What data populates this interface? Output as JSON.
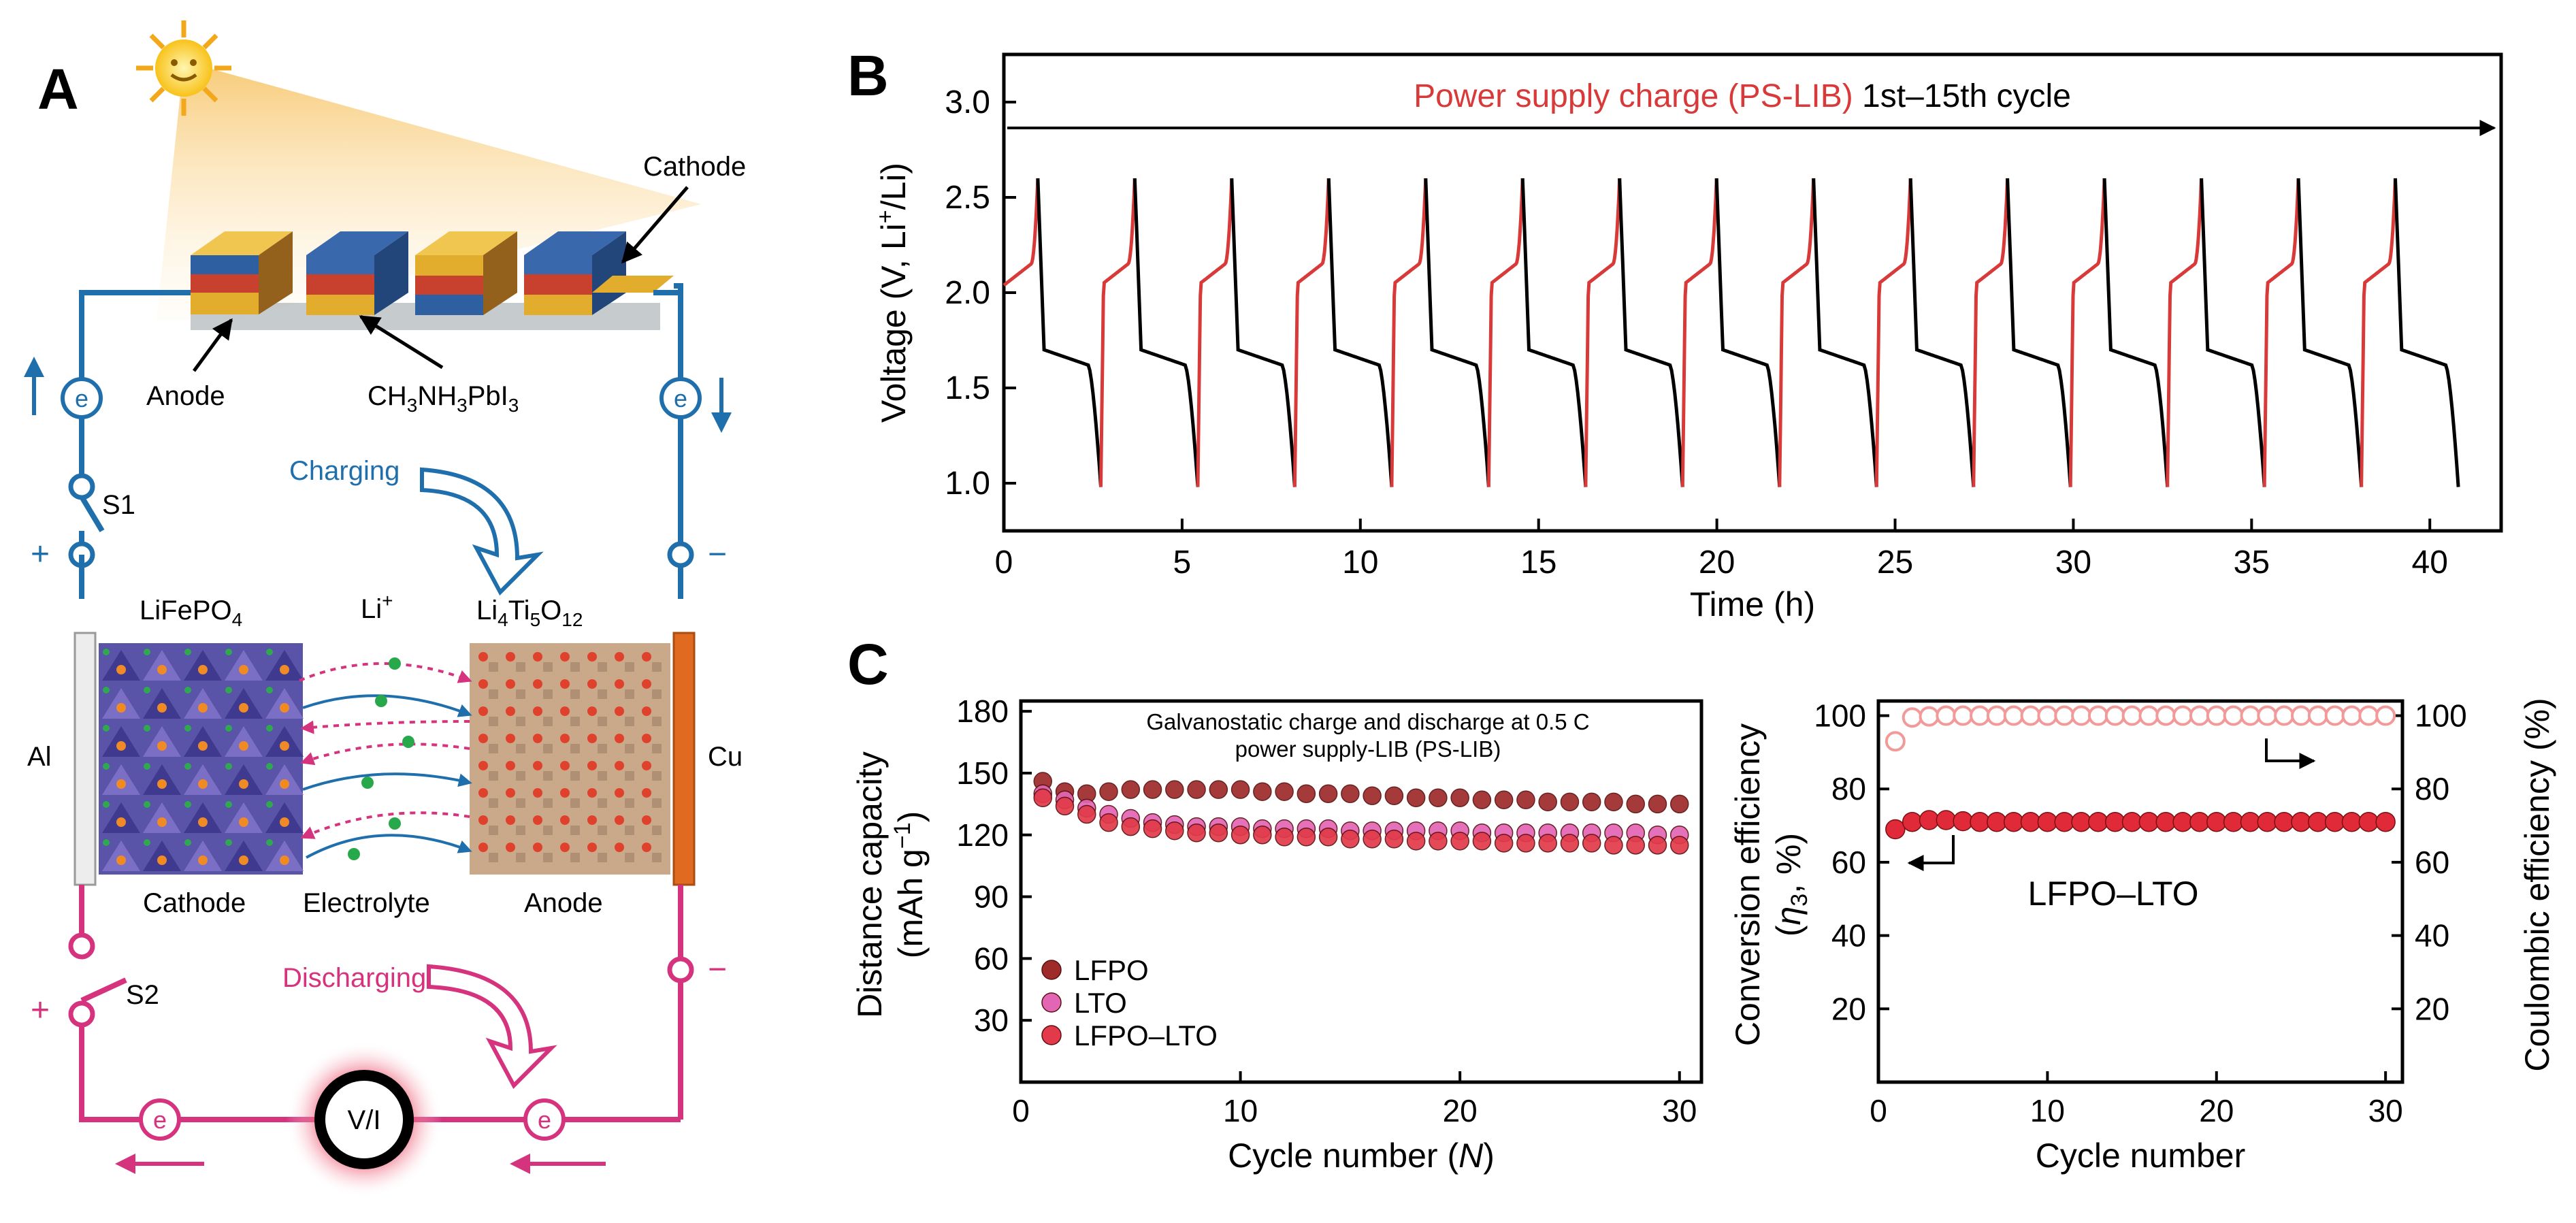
{
  "panel_a": {
    "label": "A",
    "cathode_pv_label": "Cathode",
    "anode_pv_label": "Anode",
    "perovskite_formula": {
      "base": "CH",
      "s1": "3",
      "mid": "NH",
      "s2": "3",
      "tail": "PbI",
      "s3": "3"
    },
    "charging_label": "Charging",
    "discharging_label": "Discharging",
    "switch1_label": "S1",
    "switch2_label": "S2",
    "plus_sign": "+",
    "minus_sign": "−",
    "electron_label": "e",
    "lfp_formula": {
      "base": "LiFePO",
      "sub": "4"
    },
    "lto_formula": {
      "p1": "Li",
      "s1": "4",
      "p2": "Ti",
      "s2": "5",
      "p3": "O",
      "s3": "12"
    },
    "li_ion": {
      "base": "Li",
      "sup": "+"
    },
    "al_label": "Al",
    "cu_label": "Cu",
    "cathode_label": "Cathode",
    "electrolyte_label": "Electrolyte",
    "anode_label": "Anode",
    "meter_label": "V/I",
    "colors": {
      "charge": "#1f6fad",
      "discharge": "#d6337e",
      "copper": "#e06a1f"
    }
  },
  "panel_b": {
    "label": "B",
    "chart_data": {
      "type": "line",
      "title_red": "Power supply charge (PS-LIB)",
      "title_black": "1st–15th cycle",
      "xlabel": "Time (h)",
      "ylabel": {
        "base": "Voltage (V, Li",
        "sup": "+",
        "tail": "/Li)"
      },
      "xlim": [
        0,
        42
      ],
      "ylim": [
        0.75,
        3.25
      ],
      "x_ticks": [
        "0",
        "5",
        "10",
        "15",
        "20",
        "25",
        "30",
        "35",
        "40"
      ],
      "y_ticks": [
        "1.0",
        "1.5",
        "2.0",
        "2.5",
        "3.0"
      ],
      "cycles": 15,
      "cycle_duration_h": 2.72,
      "charge_fraction": 0.35,
      "charge_plateau_v": 2.1,
      "charge_max_v": 2.6,
      "discharge_plateau_v": 1.7,
      "discharge_min_v": 0.98,
      "series_colors": {
        "charge": "#d83a3a",
        "discharge": "#000000"
      }
    }
  },
  "panel_c": {
    "label": "C",
    "chart_data": [
      {
        "type": "scatter",
        "annotation_line1": "Galvanostatic charge and discharge at 0.5 C",
        "annotation_line2": "power supply-LIB (PS-LIB)",
        "xlabel": {
          "base": "Cycle number (",
          "italic": "N",
          "tail": ")"
        },
        "ylabel_line1": "Distance capacity",
        "ylabel_line2": {
          "base": "(mAh g",
          "sup": "−1",
          "tail": ")"
        },
        "xlim": [
          0,
          31
        ],
        "ylim": [
          0,
          185
        ],
        "x_ticks": [
          "0",
          "10",
          "20",
          "30"
        ],
        "y_ticks": [
          "30",
          "60",
          "90",
          "120",
          "150",
          "180"
        ],
        "x": [
          1,
          2,
          3,
          4,
          5,
          6,
          7,
          8,
          9,
          10,
          11,
          12,
          13,
          14,
          15,
          16,
          17,
          18,
          19,
          20,
          21,
          22,
          23,
          24,
          25,
          26,
          27,
          28,
          29,
          30
        ],
        "series": [
          {
            "name": "LFPO",
            "color": "#9e2a2a",
            "values": [
              146,
              141,
              140,
              141,
              142,
              142,
              142,
              142,
              142,
              142,
              141,
              141,
              140,
              140,
              140,
              139,
              139,
              138,
              138,
              138,
              137,
              137,
              137,
              136,
              136,
              136,
              136,
              135,
              135,
              135
            ]
          },
          {
            "name": "LTO",
            "color": "#e266b4",
            "values": [
              140,
              137,
              133,
              130,
              128,
              126,
              125,
              124,
              124,
              124,
              123,
              123,
              123,
              123,
              122,
              122,
              122,
              122,
              122,
              122,
              121,
              121,
              121,
              121,
              121,
              121,
              121,
              121,
              120,
              120
            ]
          },
          {
            "name": "LFPO–LTO",
            "color": "#e23a4a",
            "values": [
              138,
              134,
              130,
              126,
              124,
              123,
              122,
              121,
              121,
              120,
              120,
              119,
              119,
              119,
              118,
              118,
              118,
              117,
              117,
              117,
              117,
              116,
              116,
              116,
              116,
              116,
              115,
              115,
              115,
              115
            ]
          }
        ]
      },
      {
        "type": "scatter",
        "inner_label": "LFPO–LTO",
        "xlabel": "Cycle number",
        "ylabel_left": {
          "line1": "Conversion efficiency",
          "base": "(",
          "italic": "η",
          "sub": "3",
          "tail": ", %)"
        },
        "ylabel_right": "Coulombic efficiency (%)",
        "xlim": [
          0,
          31
        ],
        "ylim": [
          0,
          104
        ],
        "x_ticks": [
          "0",
          "10",
          "20",
          "30"
        ],
        "y_ticks": [
          "20",
          "40",
          "60",
          "80",
          "100"
        ],
        "x": [
          1,
          2,
          3,
          4,
          5,
          6,
          7,
          8,
          9,
          10,
          11,
          12,
          13,
          14,
          15,
          16,
          17,
          18,
          19,
          20,
          21,
          22,
          23,
          24,
          25,
          26,
          27,
          28,
          29,
          30
        ],
        "series": [
          {
            "name": "Conversion efficiency",
            "color": "#e02a3a",
            "axis": "left",
            "values": [
              69,
              71,
              71.5,
              71.5,
              71.2,
              71,
              71,
              71,
              71,
              71,
              71,
              71,
              71,
              71,
              71,
              71,
              71,
              71,
              71,
              71,
              71,
              71,
              71,
              71,
              71,
              71,
              71,
              71,
              71,
              71
            ]
          },
          {
            "name": "Coulombic efficiency",
            "color": "#f29a9a",
            "axis": "right",
            "hollow": true,
            "values": [
              93,
              99.5,
              99.8,
              100,
              100,
              100,
              100,
              100,
              100,
              100,
              100,
              100,
              100,
              100,
              100,
              100,
              100,
              100,
              100,
              100,
              100,
              100,
              100,
              100,
              100,
              100,
              100,
              100,
              100,
              100
            ]
          }
        ]
      }
    ]
  }
}
